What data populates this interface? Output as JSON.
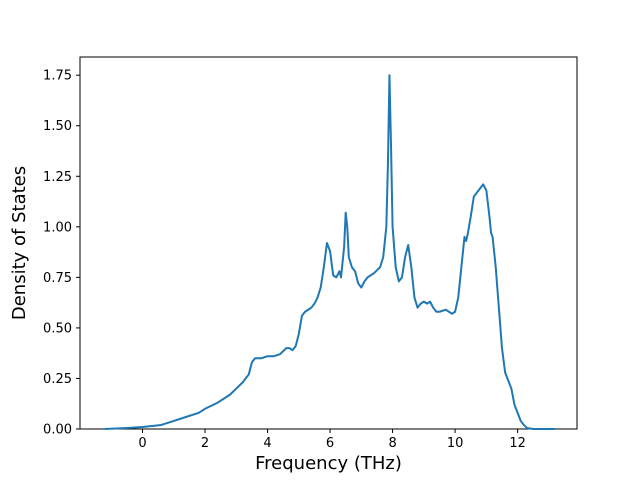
{
  "figure": {
    "background": "#ffffff",
    "line_color": "#1f77b4",
    "spine_color": "#000000"
  },
  "chart_data": {
    "type": "line",
    "title": "",
    "xlabel": "Frequency (THz)",
    "ylabel": "Density of States",
    "xlim": [
      -2.0,
      13.9
    ],
    "ylim": [
      0,
      1.84
    ],
    "x_ticks": [
      0,
      2,
      4,
      6,
      8,
      10,
      12
    ],
    "y_ticks": [
      0.0,
      0.25,
      0.5,
      0.75,
      1.0,
      1.25,
      1.5,
      1.75
    ],
    "grid": false,
    "legend": null,
    "series": [
      {
        "name": "density-of-states",
        "color": "#1f77b4",
        "x": [
          -1.2,
          -0.5,
          0.0,
          0.3,
          0.6,
          1.0,
          1.4,
          1.8,
          2.0,
          2.4,
          2.8,
          3.0,
          3.2,
          3.4,
          3.5,
          3.6,
          3.8,
          4.0,
          4.2,
          4.4,
          4.6,
          4.7,
          4.8,
          4.9,
          5.0,
          5.1,
          5.2,
          5.4,
          5.5,
          5.6,
          5.7,
          5.8,
          5.9,
          6.0,
          6.1,
          6.2,
          6.3,
          6.35,
          6.45,
          6.5,
          6.55,
          6.6,
          6.7,
          6.8,
          6.9,
          7.0,
          7.1,
          7.2,
          7.4,
          7.6,
          7.7,
          7.8,
          7.85,
          7.9,
          7.95,
          8.0,
          8.1,
          8.2,
          8.3,
          8.4,
          8.5,
          8.6,
          8.7,
          8.8,
          8.9,
          9.0,
          9.1,
          9.2,
          9.3,
          9.4,
          9.5,
          9.7,
          9.9,
          10.0,
          10.1,
          10.2,
          10.3,
          10.35,
          10.4,
          10.5,
          10.6,
          10.7,
          10.8,
          10.9,
          11.0,
          11.1,
          11.15,
          11.2,
          11.3,
          11.4,
          11.5,
          11.6,
          11.7,
          11.8,
          11.9,
          12.0,
          12.1,
          12.2,
          12.3,
          12.5,
          13.0,
          13.2
        ],
        "y": [
          0,
          0.005,
          0.01,
          0.015,
          0.02,
          0.04,
          0.06,
          0.08,
          0.1,
          0.13,
          0.17,
          0.2,
          0.23,
          0.27,
          0.33,
          0.35,
          0.35,
          0.36,
          0.36,
          0.37,
          0.4,
          0.4,
          0.39,
          0.41,
          0.47,
          0.56,
          0.58,
          0.6,
          0.62,
          0.65,
          0.7,
          0.8,
          0.92,
          0.88,
          0.76,
          0.75,
          0.78,
          0.75,
          0.9,
          1.07,
          1.0,
          0.85,
          0.8,
          0.78,
          0.72,
          0.7,
          0.73,
          0.75,
          0.77,
          0.8,
          0.85,
          1.0,
          1.3,
          1.75,
          1.4,
          1.0,
          0.8,
          0.73,
          0.75,
          0.85,
          0.91,
          0.8,
          0.65,
          0.6,
          0.62,
          0.63,
          0.62,
          0.63,
          0.6,
          0.58,
          0.58,
          0.59,
          0.57,
          0.58,
          0.65,
          0.8,
          0.95,
          0.93,
          0.96,
          1.05,
          1.15,
          1.17,
          1.19,
          1.21,
          1.18,
          1.05,
          0.97,
          0.95,
          0.8,
          0.6,
          0.4,
          0.28,
          0.24,
          0.2,
          0.12,
          0.08,
          0.04,
          0.02,
          0.005,
          0.0,
          0.0,
          0.0
        ]
      }
    ]
  }
}
